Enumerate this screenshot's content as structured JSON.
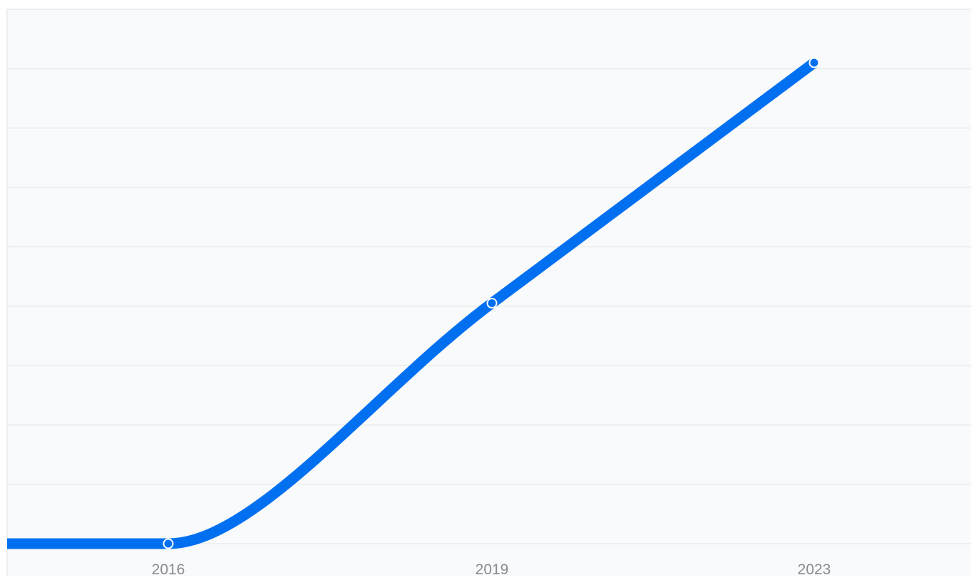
{
  "chart_data": {
    "type": "line",
    "title": "",
    "xlabel": "",
    "ylabel": "",
    "categories": [
      "2016",
      "2019",
      "2023"
    ],
    "series": [
      {
        "values": [
          0,
          0.45,
          0.9
        ],
        "color": "#0070f0"
      }
    ],
    "ylim": [
      0,
      1
    ],
    "grid": true,
    "legend": "none",
    "background_color": "#f9fafb",
    "grid_color": "#eeeeee",
    "tick_label_color": "#8a8a8e"
  }
}
